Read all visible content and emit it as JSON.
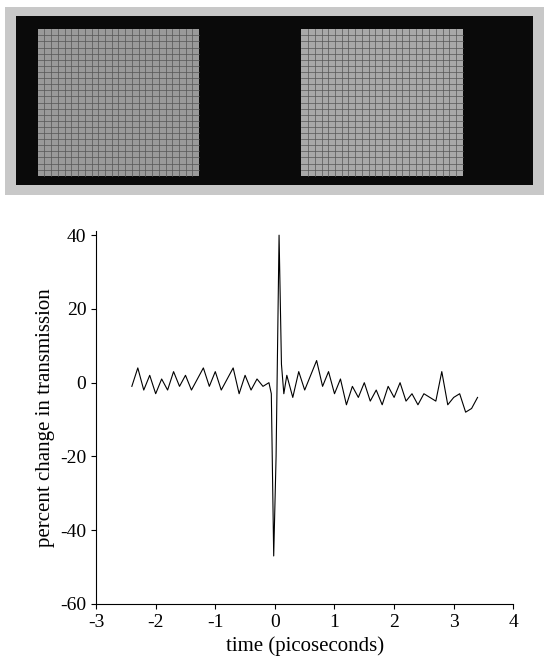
{
  "chart_data": {
    "type": "line",
    "x_label": "time (picoseconds)",
    "y_label": "percent change in transmission",
    "x": [
      -2.4,
      -2.3,
      -2.2,
      -2.1,
      -2.0,
      -1.9,
      -1.8,
      -1.7,
      -1.6,
      -1.5,
      -1.4,
      -1.3,
      -1.2,
      -1.1,
      -1.0,
      -0.9,
      -0.8,
      -0.7,
      -0.6,
      -0.5,
      -0.4,
      -0.3,
      -0.2,
      -0.1,
      -0.06,
      -0.02,
      0.02,
      0.07,
      0.11,
      0.15,
      0.2,
      0.3,
      0.4,
      0.5,
      0.6,
      0.7,
      0.8,
      0.9,
      1.0,
      1.1,
      1.2,
      1.3,
      1.4,
      1.5,
      1.6,
      1.7,
      1.8,
      1.9,
      2.0,
      2.1,
      2.2,
      2.3,
      2.4,
      2.5,
      2.6,
      2.7,
      2.8,
      2.9,
      3.0,
      3.1,
      3.2,
      3.3,
      3.4
    ],
    "values": [
      -1,
      4,
      -2,
      2,
      -3,
      1,
      -2,
      3,
      -1,
      2,
      -2,
      1,
      4,
      -1,
      3,
      -2,
      1,
      4,
      -3,
      2,
      -2,
      1,
      -1,
      0,
      -3,
      -47,
      -20,
      40,
      5,
      -3,
      2,
      -4,
      3,
      -2,
      2,
      6,
      -1,
      3,
      -3,
      1,
      -6,
      -1,
      -4,
      0,
      -5,
      -2,
      -6,
      -1,
      -4,
      0,
      -5,
      -3,
      -6,
      -3,
      -4,
      -5,
      3,
      -6,
      -4,
      -3,
      -8,
      -7,
      -4
    ],
    "color": "#000000",
    "xlim": [
      -3,
      4
    ],
    "xticks": [
      -3,
      -2,
      -1,
      0,
      1,
      2,
      3,
      4
    ],
    "ylim": [
      -60,
      41
    ],
    "yticks": [
      -60,
      -40,
      -20,
      0,
      20,
      40
    ],
    "grid": false
  }
}
